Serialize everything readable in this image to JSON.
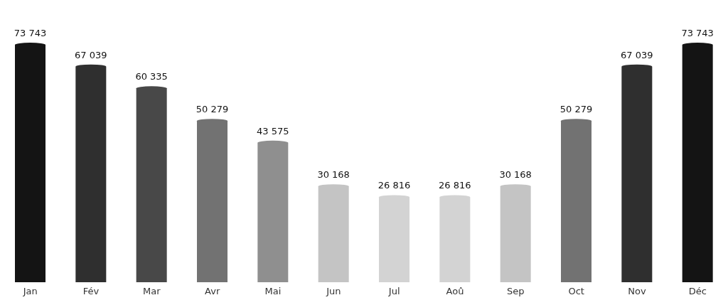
{
  "chart_data": {
    "type": "bar",
    "categories": [
      "Jan",
      "Fév",
      "Mar",
      "Avr",
      "Mai",
      "Jun",
      "Jul",
      "Aoû",
      "Sep",
      "Oct",
      "Nov",
      "Déc"
    ],
    "values": [
      73743,
      67039,
      60335,
      50279,
      43575,
      30168,
      26816,
      26816,
      30168,
      50279,
      67039,
      73743
    ],
    "colors": [
      "#141414",
      "#2f2f2f",
      "#484848",
      "#727272",
      "#8f8f8f",
      "#c4c4c4",
      "#d3d3d3",
      "#d3d3d3",
      "#c4c4c4",
      "#727272",
      "#2f2f2f",
      "#141414"
    ],
    "value_labels": [
      "73 743",
      "67 039",
      "60 335",
      "50 279",
      "43 575",
      "30 168",
      "26 816",
      "26 816",
      "30 168",
      "50 279",
      "67 039",
      "73 743"
    ],
    "grid": false,
    "legend": false
  }
}
